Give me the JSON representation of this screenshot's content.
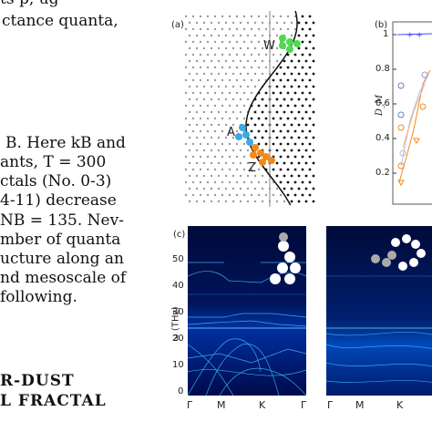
{
  "text_lines": [
    "ctance quanta,",
    "B. Here kB and",
    "ants, T = 300",
    "ctals (No. 0-3)",
    "4-11) decrease",
    "NB = 135. Nev-",
    "mber of quanta",
    "ucture along an",
    "nd mesoscale of",
    "following."
  ],
  "top_fragment": "ts p, ug",
  "heading_lines": [
    "R-DUST",
    "L FRACTAL"
  ],
  "panel_a": {
    "label": "(a)",
    "markers": [
      "W",
      "A",
      "Z"
    ],
    "colors": {
      "W": "#4ddb4d",
      "A": "#3aa9e8",
      "Z": "#f28a1a"
    }
  },
  "panel_b": {
    "label": "(b)",
    "ylabel": "D_M",
    "yticks": [
      "1",
      "0.8",
      "0.6",
      "0.4",
      "0.2"
    ]
  },
  "panel_c": {
    "label": "(c)",
    "ylabel": "ω (THz)",
    "yticks": [
      "50",
      "40",
      "30",
      "20",
      "10",
      "0"
    ],
    "xticks_left": [
      "Γ",
      "M",
      "K",
      "Γ"
    ],
    "xticks_right": [
      "Γ",
      "M",
      "K"
    ]
  }
}
